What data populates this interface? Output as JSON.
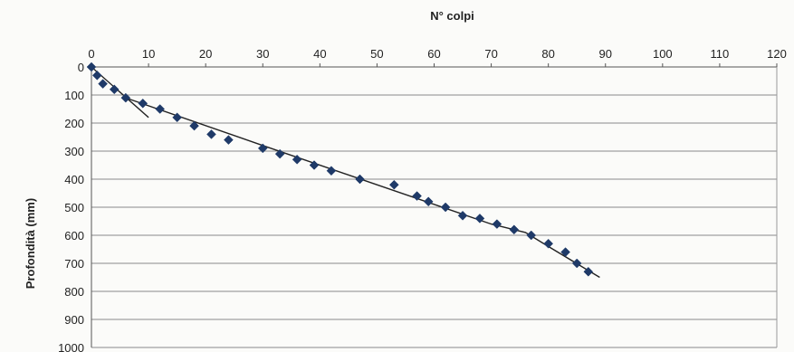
{
  "chart_data": {
    "type": "scatter",
    "title": "",
    "xlabel": "N° colpi",
    "ylabel": "Profondità (mm)",
    "x_axis_position": "top",
    "y_axis_inverted": true,
    "xlim": [
      0,
      120
    ],
    "ylim": [
      0,
      1000
    ],
    "x_ticks": [
      "0",
      "10",
      "20",
      "30",
      "40",
      "50",
      "60",
      "70",
      "80",
      "90",
      "100",
      "110",
      "120"
    ],
    "y_ticks": [
      "0",
      "100",
      "200",
      "300",
      "400",
      "500",
      "600",
      "700",
      "800",
      "900",
      "1000"
    ],
    "grid": "horizontal",
    "legend": "none",
    "series": [
      {
        "marker": "diamond",
        "color": "#1f3a68",
        "x": [
          0,
          1,
          2,
          4,
          6,
          9,
          12,
          15,
          18,
          21,
          24,
          30,
          33,
          36,
          39,
          42,
          47,
          53,
          57,
          59,
          62,
          65,
          68,
          71,
          74,
          77,
          80,
          83,
          85,
          87
        ],
        "y": [
          0,
          30,
          60,
          80,
          110,
          130,
          150,
          180,
          210,
          240,
          260,
          290,
          310,
          330,
          350,
          370,
          400,
          420,
          460,
          480,
          500,
          530,
          540,
          560,
          580,
          600,
          630,
          660,
          700,
          730
        ]
      }
    ],
    "trendlines": [
      {
        "color": "#222222",
        "points": [
          [
            0,
            0
          ],
          [
            10,
            180
          ]
        ]
      },
      {
        "color": "#222222",
        "points": [
          [
            6,
            110
          ],
          [
            30,
            280
          ],
          [
            50,
            420
          ],
          [
            70,
            560
          ],
          [
            76,
            590
          ],
          [
            80,
            640
          ],
          [
            89,
            750
          ]
        ]
      }
    ]
  }
}
